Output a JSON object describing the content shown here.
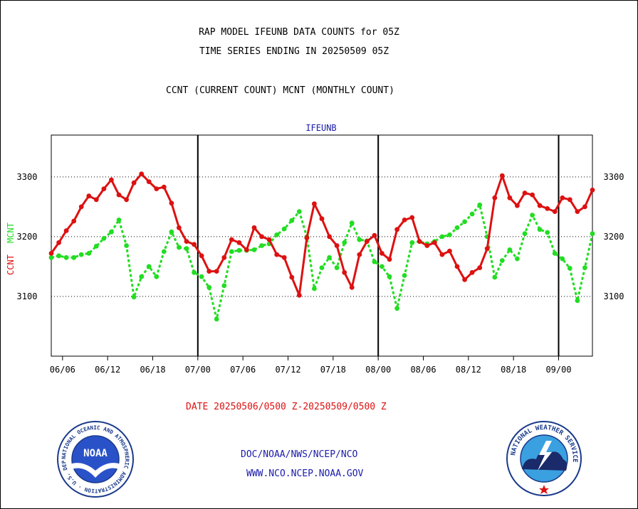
{
  "chart_data": {
    "type": "line",
    "title": "RAP MODEL IFEUNB DATA COUNTS for 05Z",
    "subtitle": "TIME SERIES ENDING IN 20250509 05Z",
    "description": "CCNT (CURRENT COUNT) MCNT (MONTHLY COUNT)",
    "panel_label": "IFEUNB",
    "ylabel_ccnt": "CCNT",
    "ylabel_mcnt": "MCNT",
    "xlabel": "DATE 20250506/0500 Z-20250509/0500 Z",
    "ylim": [
      3000,
      3370
    ],
    "yticks": [
      3100,
      3200,
      3300
    ],
    "ytick_labels": [
      "3100",
      "3200",
      "3300"
    ],
    "xlim": [
      0,
      72
    ],
    "xticks": [
      1.5,
      7.5,
      13.5,
      19.5,
      25.5,
      31.5,
      37.5,
      43.5,
      49.5,
      55.5,
      61.5,
      67.5
    ],
    "xtick_labels": [
      "06/06",
      "06/12",
      "06/18",
      "07/00",
      "07/06",
      "07/12",
      "07/18",
      "08/00",
      "08/06",
      "08/12",
      "08/18",
      "09/00"
    ],
    "day_boundaries": [
      19.5,
      43.5,
      67.5
    ],
    "grid": "horizontal dotted",
    "series": [
      {
        "name": "CCNT",
        "color": "#dd1111",
        "x": [
          0,
          1,
          2,
          3,
          4,
          5,
          6,
          7,
          8,
          9,
          10,
          11,
          12,
          13,
          14,
          15,
          16,
          17,
          18,
          19,
          20,
          21,
          22,
          23,
          24,
          25,
          26,
          27,
          28,
          29,
          30,
          31,
          32,
          33,
          34,
          35,
          36,
          37,
          38,
          39,
          40,
          41,
          42,
          43,
          44,
          45,
          46,
          47,
          48,
          49,
          50,
          51,
          52,
          53,
          54,
          55,
          56,
          57,
          58,
          59,
          60,
          61,
          62,
          63,
          64,
          65,
          66,
          67,
          68,
          69,
          70,
          71,
          72
        ],
        "values": [
          3172,
          3190,
          3210,
          3226,
          3250,
          3268,
          3262,
          3280,
          3295,
          3270,
          3262,
          3290,
          3305,
          3292,
          3280,
          3283,
          3256,
          3215,
          3192,
          3187,
          3168,
          3142,
          3142,
          3165,
          3195,
          3190,
          3178,
          3215,
          3200,
          3195,
          3170,
          3165,
          3132,
          3102,
          3198,
          3255,
          3230,
          3200,
          3185,
          3140,
          3115,
          3170,
          3192,
          3202,
          3172,
          3162,
          3212,
          3228,
          3232,
          3192,
          3185,
          3190,
          3170,
          3176,
          3150,
          3128,
          3140,
          3148,
          3180,
          3265,
          3302,
          3265,
          3252,
          3273,
          3270,
          3252,
          3247,
          3242,
          3265,
          3262,
          3242,
          3250,
          3278
        ]
      },
      {
        "name": "MCNT",
        "color": "#22dd22",
        "x": [
          0,
          1,
          2,
          3,
          4,
          5,
          6,
          7,
          8,
          9,
          10,
          11,
          12,
          13,
          14,
          15,
          16,
          17,
          18,
          19,
          20,
          21,
          22,
          23,
          24,
          25,
          26,
          27,
          28,
          29,
          30,
          31,
          32,
          33,
          34,
          35,
          36,
          37,
          38,
          39,
          40,
          41,
          42,
          43,
          44,
          45,
          46,
          47,
          48,
          49,
          50,
          51,
          52,
          53,
          54,
          55,
          56,
          57,
          58,
          59,
          60,
          61,
          62,
          63,
          64,
          65,
          66,
          67,
          68,
          69,
          70,
          71,
          72
        ],
        "values": [
          3165,
          3168,
          3165,
          3165,
          3170,
          3172,
          3184,
          3197,
          3208,
          3228,
          3185,
          3099,
          3133,
          3150,
          3133,
          3175,
          3208,
          3182,
          3180,
          3140,
          3133,
          3115,
          3062,
          3118,
          3175,
          3177,
          3177,
          3178,
          3185,
          3188,
          3203,
          3213,
          3227,
          3242,
          3200,
          3113,
          3148,
          3165,
          3148,
          3190,
          3223,
          3195,
          3193,
          3158,
          3150,
          3133,
          3080,
          3135,
          3190,
          3192,
          3188,
          3192,
          3200,
          3203,
          3215,
          3225,
          3238,
          3253,
          3200,
          3132,
          3160,
          3178,
          3163,
          3205,
          3236,
          3212,
          3207,
          3172,
          3163,
          3147,
          3093,
          3148,
          3205
        ]
      }
    ]
  },
  "footer": {
    "link_org": "DOC/NOAA/NWS/NCEP/NCO",
    "link_web": "WWW.NCO.NCEP.NOAA.GOV"
  },
  "logos": {
    "noaa_ring_text": "NATIONAL OCEANIC AND ATMOSPHERIC ADMINISTRATION · U.S. DEPARTMENT OF COMMERCE ·",
    "noaa_center": "NOAA",
    "nws_ring_text": "NATIONAL WEATHER SERVICE"
  },
  "colors": {
    "ccnt": "#dd1111",
    "mcnt": "#22dd22",
    "link": "#1a1aaa",
    "title": "#000000",
    "panel_label": "#1a1aaa"
  }
}
